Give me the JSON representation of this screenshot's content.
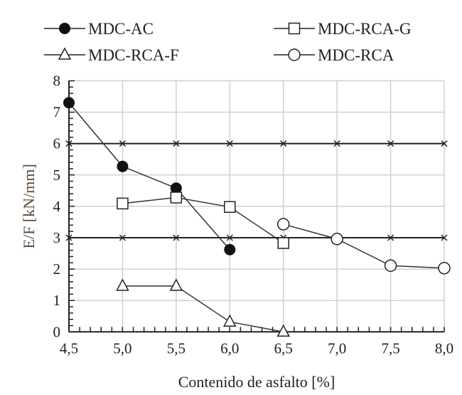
{
  "chart_data": {
    "type": "line",
    "title": "",
    "xlabel": "Contenido de asfalto [%]",
    "ylabel": "E/F [kN/mm]",
    "xlim": [
      4.5,
      8.0
    ],
    "ylim": [
      0,
      8
    ],
    "x_ticks": [
      "4,5",
      "5,0",
      "5,5",
      "6,0",
      "6,5",
      "7,0",
      "7,5",
      "8,0"
    ],
    "y_ticks": [
      "0",
      "1",
      "2",
      "3",
      "4",
      "5",
      "6",
      "7",
      "8"
    ],
    "grid": true,
    "legend_placement": "top",
    "series": [
      {
        "name": "MDC-AC",
        "marker": "filled-circle",
        "x": [
          4.5,
          5.0,
          5.5,
          6.0
        ],
        "y": [
          7.3,
          5.27,
          4.58,
          2.62
        ]
      },
      {
        "name": "MDC-RCA-G",
        "marker": "open-square",
        "x": [
          5.0,
          5.5,
          6.0,
          6.5
        ],
        "y": [
          4.09,
          4.28,
          3.98,
          2.83
        ]
      },
      {
        "name": "MDC-RCA-F",
        "marker": "open-triangle",
        "x": [
          5.0,
          5.5,
          6.0,
          6.5
        ],
        "y": [
          1.46,
          1.46,
          0.32,
          0.0
        ]
      },
      {
        "name": "MDC-RCA",
        "marker": "open-circle",
        "x": [
          6.5,
          7.0,
          7.5,
          8.0
        ],
        "y": [
          3.43,
          2.96,
          2.11,
          2.03
        ]
      }
    ],
    "reference_lines": [
      {
        "y": 6,
        "marker": "x"
      },
      {
        "y": 3,
        "marker": "x"
      }
    ],
    "colors": {
      "lines": "#222222",
      "grid": "#d0d0d0",
      "ylabel": "#5a4a3a"
    }
  }
}
